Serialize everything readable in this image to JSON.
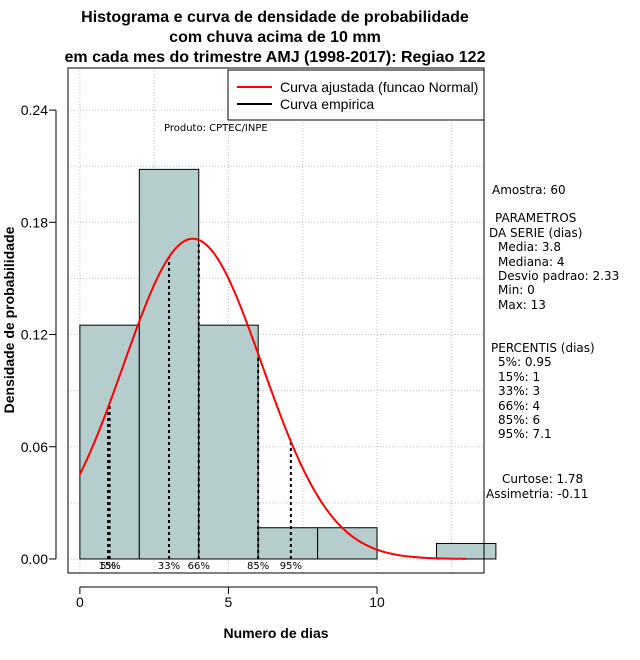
{
  "title_lines": [
    "Histograma e curva de densidade de probabilidade",
    "com chuva acima de 10 mm",
    "em cada mes do trimestre AMJ (1998-2017): Regiao 122"
  ],
  "product_label": "Produto: CPTEC/INPE",
  "legend": {
    "fitted_label": "Curva ajustada (funcao Normal)",
    "empirical_label": "Curva empirica"
  },
  "side_panel": {
    "sample": "Amostra: 60",
    "params_title_1": "PARAMETROS",
    "params_title_2": "DA SERIE (dias)",
    "mean": "Media: 3.8",
    "median": "Mediana: 4",
    "sd": "Desvio padrao: 2.33",
    "min": "Min: 0",
    "max": "Max: 13",
    "percentiles_title": "PERCENTIS (dias)",
    "p5": "5%: 0.95",
    "p15": "15%: 1",
    "p33": "33%: 3",
    "p66": "66%: 4",
    "p85": "85%: 6",
    "p95": "95%: 7.1",
    "kurtosis": "Curtose: 1.78",
    "skewness": "Assimetria: -0.11"
  },
  "colors": {
    "bar_fill": "#b5cdcd",
    "fitted_curve": "#ff0000",
    "empirical": "#000000",
    "grid": "#bdbdbd"
  },
  "chart_data": {
    "type": "bar",
    "title": "Histograma e curva de densidade de probabilidade com chuva acima de 10 mm em cada mes do trimestre AMJ (1998-2017): Regiao 122",
    "xlabel": "Numero de dias",
    "ylabel": "Densidade de probabilidade",
    "xlim": [
      -0.4,
      13.6
    ],
    "ylim": [
      -0.0075,
      0.2625
    ],
    "x_ticks": [
      0,
      5,
      10
    ],
    "x_tick_labels": [
      "0",
      "5",
      "10"
    ],
    "y_ticks": [
      0,
      0.06,
      0.12,
      0.18,
      0.24
    ],
    "y_tick_labels": [
      "0.00",
      "0.06",
      "0.12",
      "0.18",
      "0.24"
    ],
    "grid": true,
    "legend_position": "top-right",
    "bins": [
      {
        "x0": 0,
        "x1": 2,
        "density": 0.125
      },
      {
        "x0": 2,
        "x1": 4,
        "density": 0.2083
      },
      {
        "x0": 4,
        "x1": 6,
        "density": 0.125
      },
      {
        "x0": 6,
        "x1": 8,
        "density": 0.0167
      },
      {
        "x0": 8,
        "x1": 10,
        "density": 0.0167
      },
      {
        "x0": 10,
        "x1": 12,
        "density": 0
      },
      {
        "x0": 12,
        "x1": 14,
        "density": 0.0083
      }
    ],
    "fitted_normal": {
      "mean": 3.8,
      "sd": 2.33,
      "x_range": [
        0,
        13
      ]
    },
    "percentile_markers": [
      {
        "label": "5%",
        "x": 0.95
      },
      {
        "label": "15%",
        "x": 1
      },
      {
        "label": "33%",
        "x": 3
      },
      {
        "label": "66%",
        "x": 4
      },
      {
        "label": "85%",
        "x": 6
      },
      {
        "label": "95%",
        "x": 7.1
      }
    ]
  }
}
